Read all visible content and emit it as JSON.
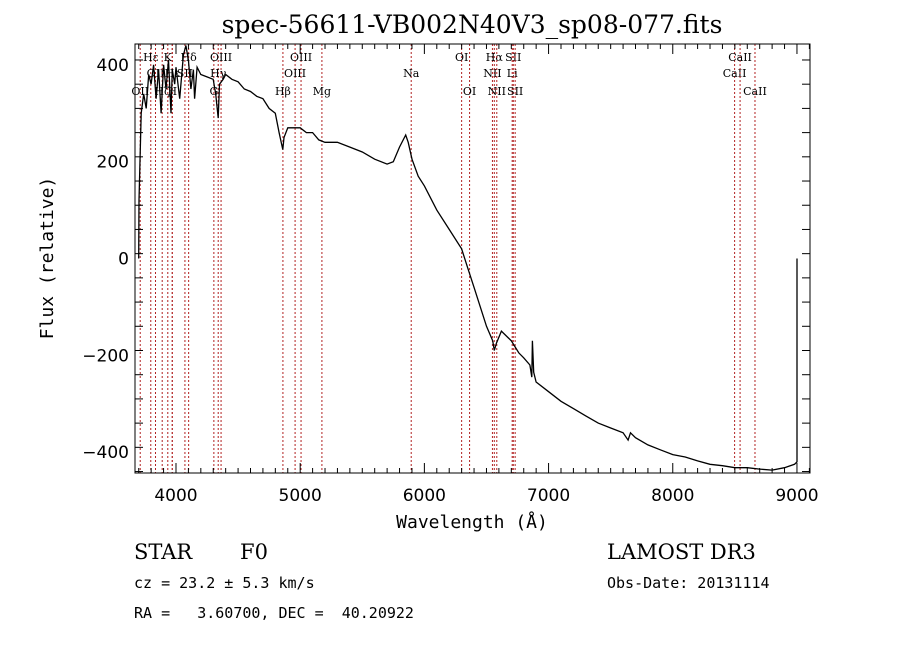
{
  "chart_data": {
    "type": "line",
    "title": "spec-56611-VB002N40V3_sp08-077.fits",
    "xlabel": "Wavelength (Å)",
    "ylabel": "Flux (relative)",
    "xlim": [
      3670,
      9105
    ],
    "ylim": [
      -443,
      443
    ],
    "xticks": [
      4000,
      5000,
      6000,
      7000,
      8000,
      9000
    ],
    "xtick_labels": [
      "4000",
      "5000",
      "6000",
      "7000",
      "8000",
      "9000"
    ],
    "yticks": [
      400,
      200,
      0,
      -200,
      -400
    ],
    "ytick_labels": [
      "400",
      "200",
      "0",
      "−200",
      "−400"
    ],
    "grid": false,
    "series": [
      {
        "name": "spectrum",
        "color": "#000000",
        "x": [
          3700,
          3702,
          3720,
          3740,
          3760,
          3780,
          3800,
          3820,
          3840,
          3860,
          3880,
          3900,
          3920,
          3940,
          3960,
          3970,
          3990,
          4000,
          4030,
          4060,
          4080,
          4100,
          4120,
          4140,
          4150,
          4170,
          4200,
          4250,
          4300,
          4320,
          4340,
          4350,
          4380,
          4400,
          4450,
          4500,
          4550,
          4600,
          4650,
          4700,
          4750,
          4800,
          4830,
          4860,
          4870,
          4900,
          4950,
          5000,
          5050,
          5100,
          5150,
          5200,
          5300,
          5400,
          5500,
          5600,
          5700,
          5750,
          5800,
          5850,
          5870,
          5900,
          5950,
          6000,
          6100,
          6200,
          6300,
          6350,
          6400,
          6450,
          6500,
          6550,
          6563,
          6580,
          6620,
          6700,
          6760,
          6800,
          6850,
          6865,
          6870,
          6880,
          6900,
          7000,
          7100,
          7200,
          7300,
          7400,
          7500,
          7600,
          7640,
          7660,
          7700,
          7800,
          7900,
          8000,
          8100,
          8200,
          8300,
          8400,
          8500,
          8600,
          8700,
          8800,
          8900,
          8980,
          9000,
          9000
        ],
        "y": [
          0,
          120,
          300,
          340,
          310,
          380,
          360,
          400,
          330,
          390,
          300,
          400,
          350,
          410,
          300,
          390,
          360,
          395,
          330,
          420,
          440,
          410,
          350,
          390,
          330,
          395,
          380,
          375,
          370,
          340,
          290,
          360,
          370,
          380,
          370,
          365,
          350,
          345,
          335,
          330,
          310,
          300,
          260,
          225,
          250,
          270,
          270,
          270,
          260,
          260,
          245,
          240,
          240,
          230,
          220,
          205,
          195,
          200,
          230,
          255,
          240,
          205,
          170,
          150,
          100,
          60,
          20,
          -20,
          -60,
          -100,
          -140,
          -170,
          -190,
          -175,
          -150,
          -170,
          -195,
          -205,
          -220,
          -245,
          -170,
          -235,
          -255,
          -275,
          -295,
          -310,
          -325,
          -340,
          -350,
          -360,
          -375,
          -360,
          -370,
          -385,
          -395,
          -405,
          -410,
          -418,
          -425,
          -428,
          -432,
          -432,
          -435,
          -437,
          -432,
          -425,
          -420,
          0
        ]
      }
    ],
    "line_markers": [
      {
        "wavelength": 3712,
        "label": "OII",
        "row": 3
      },
      {
        "wavelength": 3797,
        "label": "Hε",
        "row": 1
      },
      {
        "wavelength": 3835,
        "label": "OII",
        "row": 2
      },
      {
        "wavelength": 3889,
        "label": "Hζ",
        "row": 3
      },
      {
        "wavelength": 3934,
        "label": "K",
        "row": 1
      },
      {
        "wavelength": 3970,
        "label": "H",
        "row": 3
      },
      {
        "wavelength": 3970,
        "label": "Hε",
        "row": 2
      },
      {
        "wavelength": 4072,
        "label": "SII",
        "row": 2
      },
      {
        "wavelength": 4102,
        "label": "Hδ",
        "row": 1
      },
      {
        "wavelength": 4305,
        "label": "G",
        "row": 3
      },
      {
        "wavelength": 4340,
        "label": "Hγ",
        "row": 2
      },
      {
        "wavelength": 4363,
        "label": "OIII",
        "row": 1
      },
      {
        "wavelength": 4861,
        "label": "Hβ",
        "row": 3
      },
      {
        "wavelength": 4959,
        "label": "OIII",
        "row": 2
      },
      {
        "wavelength": 5007,
        "label": "OIII",
        "row": 1
      },
      {
        "wavelength": 5175,
        "label": "Mg",
        "row": 3
      },
      {
        "wavelength": 5894,
        "label": "Na",
        "row": 2
      },
      {
        "wavelength": 6300,
        "label": "OI",
        "row": 1
      },
      {
        "wavelength": 6364,
        "label": "OI",
        "row": 3
      },
      {
        "wavelength": 6548,
        "label": "NII",
        "row": 2
      },
      {
        "wavelength": 6563,
        "label": "Hα",
        "row": 1
      },
      {
        "wavelength": 6583,
        "label": "NII",
        "row": 3
      },
      {
        "wavelength": 6707,
        "label": "Li",
        "row": 2
      },
      {
        "wavelength": 6716,
        "label": "SII",
        "row": 1
      },
      {
        "wavelength": 6731,
        "label": "SII",
        "row": 3
      },
      {
        "wavelength": 8498,
        "label": "CaII",
        "row": 2
      },
      {
        "wavelength": 8542,
        "label": "CaII",
        "row": 1
      },
      {
        "wavelength": 8662,
        "label": "CaII",
        "row": 3
      }
    ],
    "marker_color": "#b22222"
  },
  "info": {
    "object_class": "STAR",
    "subclass": "F0",
    "cz": "cz = 23.2 ± 5.3 km/s",
    "coords": "RA =   3.60700, DEC =  40.20922",
    "survey": "LAMOST DR3",
    "obs_date": "Obs-Date: 20131114"
  }
}
